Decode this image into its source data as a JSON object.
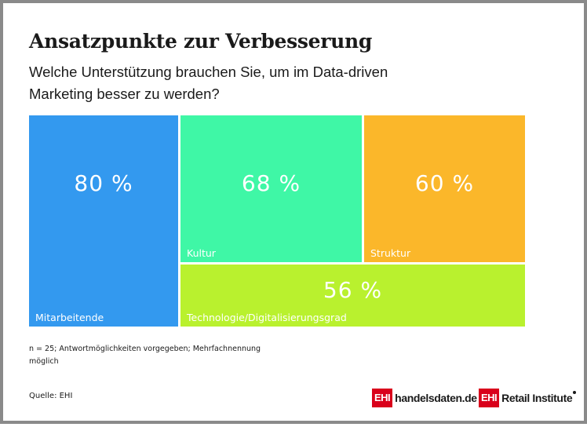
{
  "header": {
    "title": "Ansatzpunkte zur Verbesserung",
    "subtitle": "Welche Unterstützung brauchen Sie, um im Data-driven Marketing besser zu werden?"
  },
  "chart_data": {
    "type": "treemap",
    "title": "Ansatzpunkte zur Verbesserung",
    "subtitle": "Welche Unterstützung brauchen Sie, um im Data-driven Marketing besser zu werden?",
    "unit": "%",
    "items": [
      {
        "label": "Mitarbeitende",
        "value": 80,
        "value_label": "80 %",
        "color": "#3399ef"
      },
      {
        "label": "Kultur",
        "value": 68,
        "value_label": "68 %",
        "color": "#3ff7a6"
      },
      {
        "label": "Struktur",
        "value": 60,
        "value_label": "60 %",
        "color": "#fbb72a"
      },
      {
        "label": "Technologie/Digitalisierungsgrad",
        "value": 56,
        "value_label": "56 %",
        "color": "#b9f12e"
      }
    ]
  },
  "footer": {
    "note": "n = 25; Antwortmöglichkeiten vorgegeben; Mehrfachnennung möglich",
    "source": "Quelle: EHI",
    "logo1_box": "EHI",
    "logo1_text": "handelsdaten.de",
    "logo2_box": "EHI",
    "logo2_text": "Retail Institute"
  }
}
